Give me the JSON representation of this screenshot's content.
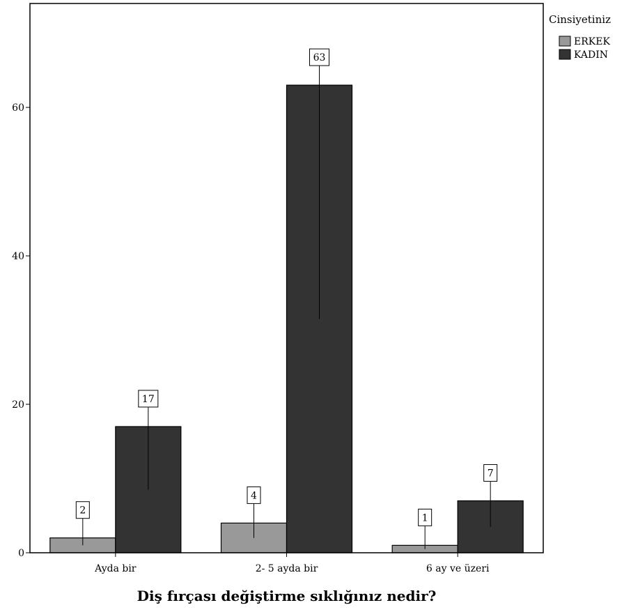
{
  "chart_data": {
    "type": "bar",
    "title": "",
    "xlabel": "Diş fırçası değiştirme sıklığınız nedir?",
    "ylabel": "",
    "categories": [
      "Ayda bir",
      "2- 5 ayda bir",
      "6 ay ve üzeri"
    ],
    "series": [
      {
        "name": "ERKEK",
        "values": [
          2,
          4,
          1
        ],
        "color": "#999999"
      },
      {
        "name": "KADIN",
        "values": [
          17,
          63,
          7
        ],
        "color": "#333333"
      }
    ],
    "ylim": [
      0,
      74
    ],
    "yticks": [
      0,
      20,
      40,
      60
    ],
    "legend": {
      "title": "Cinsiyetiniz",
      "position": "top-right-outside"
    },
    "grid": false
  }
}
